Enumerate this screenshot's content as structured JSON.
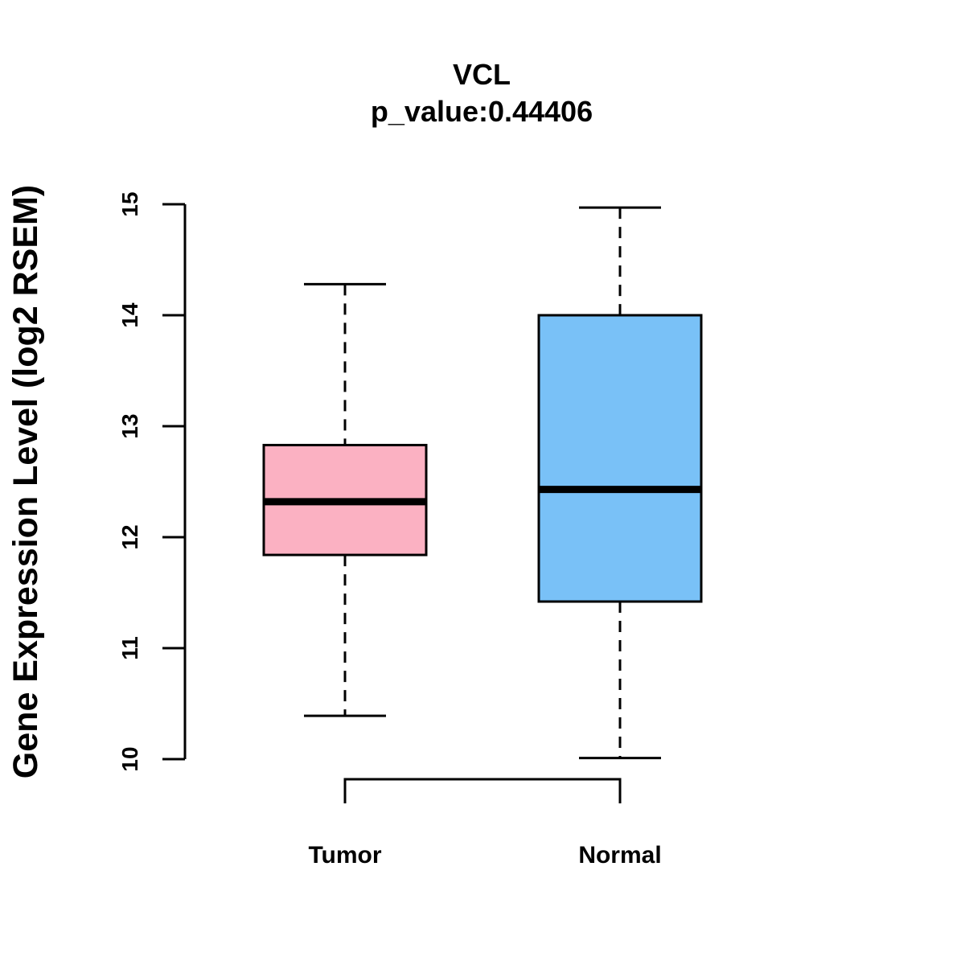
{
  "chart_data": {
    "type": "boxplot",
    "title": "VCL",
    "subtitle": "p_value:0.44406",
    "xlabel": "",
    "ylabel": "Gene Expression Level (log2 RSEM)",
    "ylim": [
      10,
      15
    ],
    "yticks": [
      10,
      11,
      12,
      13,
      14,
      15
    ],
    "grid": false,
    "categories": [
      "Tumor",
      "Normal"
    ],
    "series": [
      {
        "name": "Tumor",
        "color": "#FBB1C2",
        "whisker_low": 10.39,
        "q1": 11.84,
        "median": 12.32,
        "q3": 12.83,
        "whisker_high": 14.28
      },
      {
        "name": "Normal",
        "color": "#79C1F7",
        "whisker_low": 10.01,
        "q1": 11.42,
        "median": 12.43,
        "q3": 14.0,
        "whisker_high": 14.97
      }
    ],
    "comparison_bracket": {
      "from": "Tumor",
      "to": "Normal"
    }
  }
}
